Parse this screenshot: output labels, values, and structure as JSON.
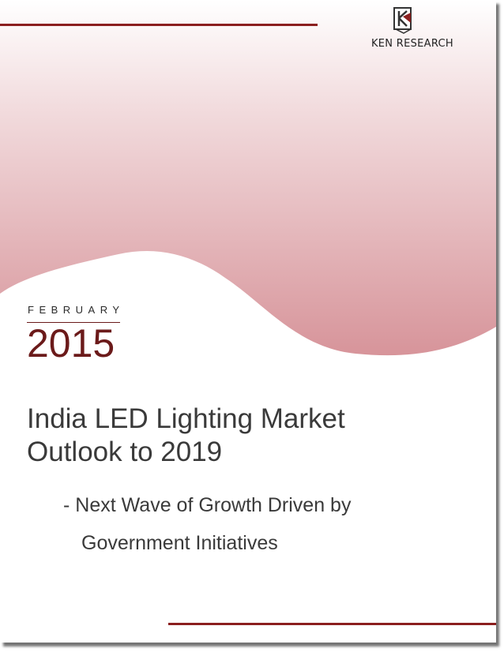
{
  "brand": {
    "name": "KEN RESEARCH",
    "logo_icon": "ken-research-k-logo"
  },
  "cover": {
    "month": "FEBRUARY",
    "year": "2015",
    "title_line1": "India LED Lighting Market",
    "title_line2": "Outlook to 2019",
    "subtitle_line1": "-  Next Wave of Growth Driven by",
    "subtitle_line2": "Government Initiatives"
  },
  "colors": {
    "accent": "#8b1f1f",
    "gradient_top": "#ffffff",
    "gradient_bottom": "#d89a9f",
    "text": "#3a3a3a"
  }
}
